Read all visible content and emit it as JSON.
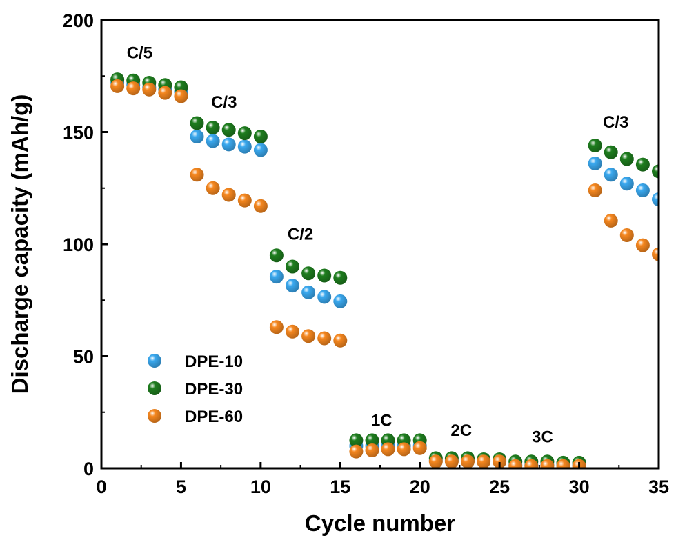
{
  "chart_data": {
    "type": "scatter",
    "title": "",
    "xlabel": "Cycle number",
    "ylabel": "Discharge capacity (mAh/g)",
    "xlim": [
      0,
      35
    ],
    "ylim": [
      0,
      200
    ],
    "xticks": [
      0,
      5,
      10,
      15,
      20,
      25,
      30,
      35
    ],
    "yticks": [
      0,
      50,
      100,
      150,
      200
    ],
    "grid": false,
    "legend_position": "left-middle",
    "series": [
      {
        "name": "DPE-10",
        "color": "#3aa8ee",
        "x": [
          1,
          2,
          3,
          4,
          5,
          6,
          7,
          8,
          9,
          10,
          11,
          12,
          13,
          14,
          15,
          16,
          17,
          18,
          19,
          20,
          21,
          22,
          23,
          24,
          25,
          26,
          27,
          28,
          29,
          30,
          31,
          32,
          33,
          34,
          35
        ],
        "y": [
          172,
          171,
          170,
          169,
          168,
          148,
          146,
          144.5,
          143.5,
          142,
          85.5,
          81.5,
          78.5,
          76.5,
          74.5,
          10,
          10,
          10,
          10,
          10,
          3.5,
          3.5,
          3.5,
          3.5,
          3.5,
          1.5,
          1.5,
          1.5,
          1.5,
          1.5,
          136,
          131,
          127,
          124,
          120
        ]
      },
      {
        "name": "DPE-30",
        "color": "#1e7d1e",
        "x": [
          1,
          2,
          3,
          4,
          5,
          6,
          7,
          8,
          9,
          10,
          11,
          12,
          13,
          14,
          15,
          16,
          17,
          18,
          19,
          20,
          21,
          22,
          23,
          24,
          25,
          26,
          27,
          28,
          29,
          30,
          31,
          32,
          33,
          34,
          35
        ],
        "y": [
          173.5,
          173,
          172,
          171,
          170,
          154,
          152,
          151,
          149.5,
          148,
          95,
          90,
          87,
          86,
          85,
          12.5,
          12.5,
          12.5,
          12.5,
          12.5,
          4.5,
          4.5,
          4.5,
          4,
          4,
          3,
          3,
          3,
          2.5,
          2.5,
          144,
          141,
          138,
          135.5,
          132.5
        ]
      },
      {
        "name": "DPE-60",
        "color": "#f5871f",
        "x": [
          1,
          2,
          3,
          4,
          5,
          6,
          7,
          8,
          9,
          10,
          11,
          12,
          13,
          14,
          15,
          16,
          17,
          18,
          19,
          20,
          21,
          22,
          23,
          24,
          25,
          26,
          27,
          28,
          29,
          30,
          31,
          32,
          33,
          34,
          35
        ],
        "y": [
          170.5,
          169.5,
          169,
          167.5,
          166,
          131,
          125,
          122,
          119.5,
          117,
          63,
          61,
          59,
          58,
          57,
          7.5,
          8,
          8.5,
          8.5,
          9,
          3,
          3,
          3,
          3,
          3,
          1,
          1,
          1,
          1,
          1,
          124,
          110.5,
          104,
          99.5,
          95.5
        ]
      }
    ],
    "annotations": [
      {
        "text": "C/5",
        "x": 2.4,
        "y": 183
      },
      {
        "text": "C/3",
        "x": 7.7,
        "y": 161
      },
      {
        "text": "C/2",
        "x": 12.5,
        "y": 102
      },
      {
        "text": "1C",
        "x": 17.6,
        "y": 19
      },
      {
        "text": "2C",
        "x": 22.6,
        "y": 14.5
      },
      {
        "text": "3C",
        "x": 27.7,
        "y": 11.5
      },
      {
        "text": "C/3",
        "x": 32.3,
        "y": 152
      }
    ]
  }
}
